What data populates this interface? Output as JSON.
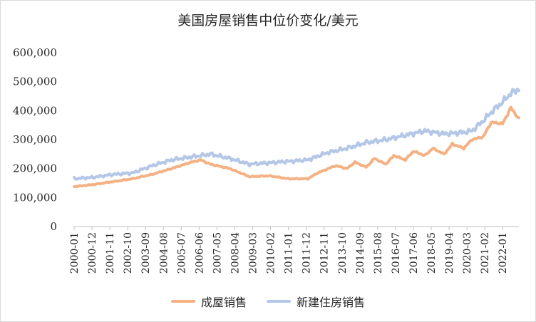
{
  "chart_data": {
    "type": "line",
    "title": "美国房屋销售中位价变化/美元",
    "xlabel": "",
    "ylabel": "",
    "ylim": [
      0,
      600000
    ],
    "y_ticks": [
      0,
      100000,
      200000,
      300000,
      400000,
      500000,
      600000
    ],
    "y_tick_labels": [
      "0",
      "100,000",
      "200,000",
      "300,000",
      "400,000",
      "500,000",
      "600,000"
    ],
    "x_tick_labels": [
      "2000-01",
      "2000-12",
      "2001-11",
      "2002-10",
      "2003-09",
      "2004-08",
      "2005-07",
      "2006-06",
      "2007-05",
      "2008-04",
      "2009-03",
      "2010-02",
      "2011-01",
      "2011-12",
      "2012-11",
      "2013-10",
      "2014-09",
      "2015-08",
      "2016-07",
      "2017-06",
      "2018-05",
      "2019-04",
      "2020-03",
      "2021-02",
      "2022-01"
    ],
    "start": "2000-01",
    "end": "2022-11",
    "series": [
      {
        "name": "成屋销售",
        "color": "#f4b183",
        "anchors": [
          [
            "2000-01",
            138000
          ],
          [
            "2001-01",
            145000
          ],
          [
            "2002-01",
            155000
          ],
          [
            "2003-01",
            165000
          ],
          [
            "2004-01",
            180000
          ],
          [
            "2005-01",
            200000
          ],
          [
            "2006-01",
            222000
          ],
          [
            "2006-07",
            230000
          ],
          [
            "2007-01",
            215000
          ],
          [
            "2008-01",
            200000
          ],
          [
            "2009-01",
            172000
          ],
          [
            "2010-01",
            175000
          ],
          [
            "2011-01",
            165000
          ],
          [
            "2012-01",
            165000
          ],
          [
            "2012-07",
            185000
          ],
          [
            "2013-06",
            210000
          ],
          [
            "2014-01",
            200000
          ],
          [
            "2014-06",
            222000
          ],
          [
            "2015-01",
            205000
          ],
          [
            "2015-06",
            235000
          ],
          [
            "2016-01",
            215000
          ],
          [
            "2016-06",
            245000
          ],
          [
            "2017-01",
            230000
          ],
          [
            "2017-06",
            260000
          ],
          [
            "2018-01",
            245000
          ],
          [
            "2018-06",
            270000
          ],
          [
            "2019-01",
            250000
          ],
          [
            "2019-06",
            285000
          ],
          [
            "2020-01",
            270000
          ],
          [
            "2020-06",
            300000
          ],
          [
            "2021-01",
            310000
          ],
          [
            "2021-06",
            360000
          ],
          [
            "2022-01",
            355000
          ],
          [
            "2022-06",
            410000
          ],
          [
            "2022-11",
            372000
          ]
        ]
      },
      {
        "name": "新建住房销售",
        "color": "#b4c7e7",
        "anchors": [
          [
            "2000-01",
            165000
          ],
          [
            "2001-01",
            170000
          ],
          [
            "2002-01",
            180000
          ],
          [
            "2003-01",
            185000
          ],
          [
            "2004-01",
            210000
          ],
          [
            "2005-01",
            230000
          ],
          [
            "2006-01",
            240000
          ],
          [
            "2007-01",
            250000
          ],
          [
            "2008-01",
            235000
          ],
          [
            "2009-01",
            215000
          ],
          [
            "2010-01",
            220000
          ],
          [
            "2011-01",
            225000
          ],
          [
            "2012-01",
            230000
          ],
          [
            "2013-01",
            255000
          ],
          [
            "2014-01",
            270000
          ],
          [
            "2015-01",
            290000
          ],
          [
            "2016-01",
            300000
          ],
          [
            "2017-01",
            315000
          ],
          [
            "2018-01",
            330000
          ],
          [
            "2019-01",
            320000
          ],
          [
            "2020-01",
            325000
          ],
          [
            "2020-06",
            330000
          ],
          [
            "2021-01",
            365000
          ],
          [
            "2021-06",
            395000
          ],
          [
            "2022-01",
            430000
          ],
          [
            "2022-06",
            460000
          ],
          [
            "2022-11",
            475000
          ]
        ]
      }
    ]
  }
}
